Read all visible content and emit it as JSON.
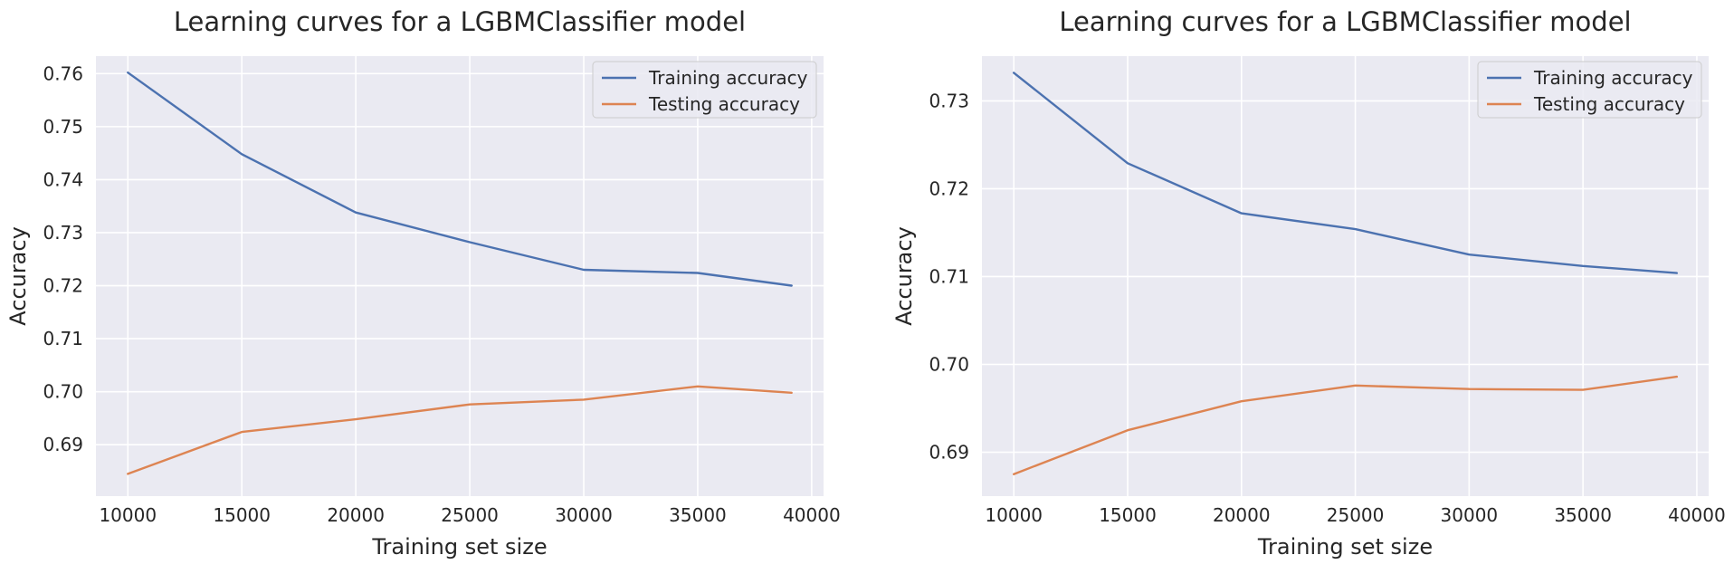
{
  "colors": {
    "plot_bg": "#EAEAF2",
    "grid": "#FFFFFF",
    "training": "#4C72B0",
    "testing": "#DD8452"
  },
  "chart_data": [
    {
      "type": "line",
      "title": "Learning curves for a LGBMClassifier model",
      "xlabel": "Training set size",
      "ylabel": "Accuracy",
      "x": [
        10000,
        15000,
        20000,
        25000,
        30000,
        35000,
        39120
      ],
      "xticks": [
        10000,
        15000,
        20000,
        25000,
        30000,
        35000,
        40000
      ],
      "xtick_labels": [
        "10000",
        "15000",
        "20000",
        "25000",
        "30000",
        "35000",
        "40000"
      ],
      "xlim": [
        8600,
        40520
      ],
      "yticks": [
        0.69,
        0.7,
        0.71,
        0.72,
        0.73,
        0.74,
        0.75,
        0.76
      ],
      "ytick_labels": [
        "0.69",
        "0.70",
        "0.71",
        "0.72",
        "0.73",
        "0.74",
        "0.75",
        "0.76"
      ],
      "ylim": [
        0.6803,
        0.7633
      ],
      "grid": true,
      "legend": "top-right",
      "series": [
        {
          "name": "Training accuracy",
          "color": "#4C72B0",
          "values": [
            0.7602,
            0.7448,
            0.7338,
            0.7282,
            0.723,
            0.7224,
            0.72
          ]
        },
        {
          "name": "Testing accuracy",
          "color": "#DD8452",
          "values": [
            0.6845,
            0.6924,
            0.6948,
            0.6976,
            0.6985,
            0.701,
            0.6998
          ]
        }
      ]
    },
    {
      "type": "line",
      "title": "Learning curves for a LGBMClassifier model",
      "xlabel": "Training set size",
      "ylabel": "Accuracy",
      "x": [
        10000,
        15000,
        20000,
        25000,
        30000,
        35000,
        39120
      ],
      "xticks": [
        10000,
        15000,
        20000,
        25000,
        30000,
        35000,
        40000
      ],
      "xtick_labels": [
        "10000",
        "15000",
        "20000",
        "25000",
        "30000",
        "35000",
        "40000"
      ],
      "xlim": [
        8600,
        40520
      ],
      "yticks": [
        0.69,
        0.7,
        0.71,
        0.72,
        0.73
      ],
      "ytick_labels": [
        "0.69",
        "0.70",
        "0.71",
        "0.72",
        "0.73"
      ],
      "ylim": [
        0.685,
        0.7351
      ],
      "grid": true,
      "legend": "top-right",
      "series": [
        {
          "name": "Training accuracy",
          "color": "#4C72B0",
          "values": [
            0.7332,
            0.7229,
            0.7172,
            0.7154,
            0.7125,
            0.7112,
            0.7104
          ]
        },
        {
          "name": "Testing accuracy",
          "color": "#DD8452",
          "values": [
            0.6875,
            0.6925,
            0.6958,
            0.6976,
            0.6972,
            0.6971,
            0.6986
          ]
        }
      ]
    }
  ]
}
